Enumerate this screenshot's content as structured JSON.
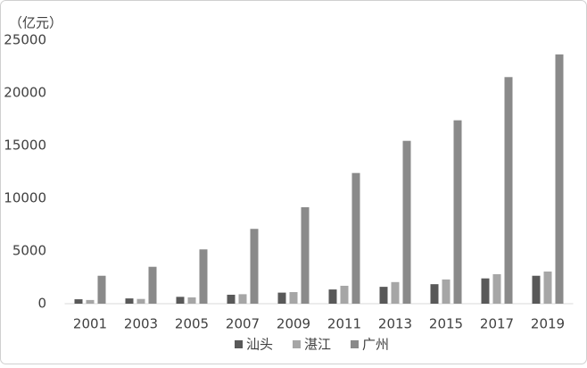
{
  "chart_data": {
    "type": "bar",
    "y_unit": "（亿元）",
    "categories": [
      "2001",
      "2003",
      "2005",
      "2007",
      "2009",
      "2011",
      "2013",
      "2015",
      "2017",
      "2019"
    ],
    "series": [
      {
        "name": "汕头",
        "color": "#595959",
        "values": [
          420,
          500,
          650,
          850,
          1050,
          1350,
          1600,
          1850,
          2400,
          2650
        ]
      },
      {
        "name": "湛江",
        "color": "#a6a6a6",
        "values": [
          350,
          450,
          600,
          900,
          1100,
          1700,
          2050,
          2300,
          2800,
          3050
        ]
      },
      {
        "name": "广州",
        "color": "#8a8a8a",
        "values": [
          2650,
          3500,
          5150,
          7100,
          9150,
          12400,
          15450,
          17400,
          21500,
          23650
        ]
      }
    ],
    "ylim": [
      0,
      25000
    ],
    "yticks": [
      0,
      5000,
      10000,
      15000,
      20000,
      25000
    ],
    "grid": false,
    "legend": "bottom"
  }
}
